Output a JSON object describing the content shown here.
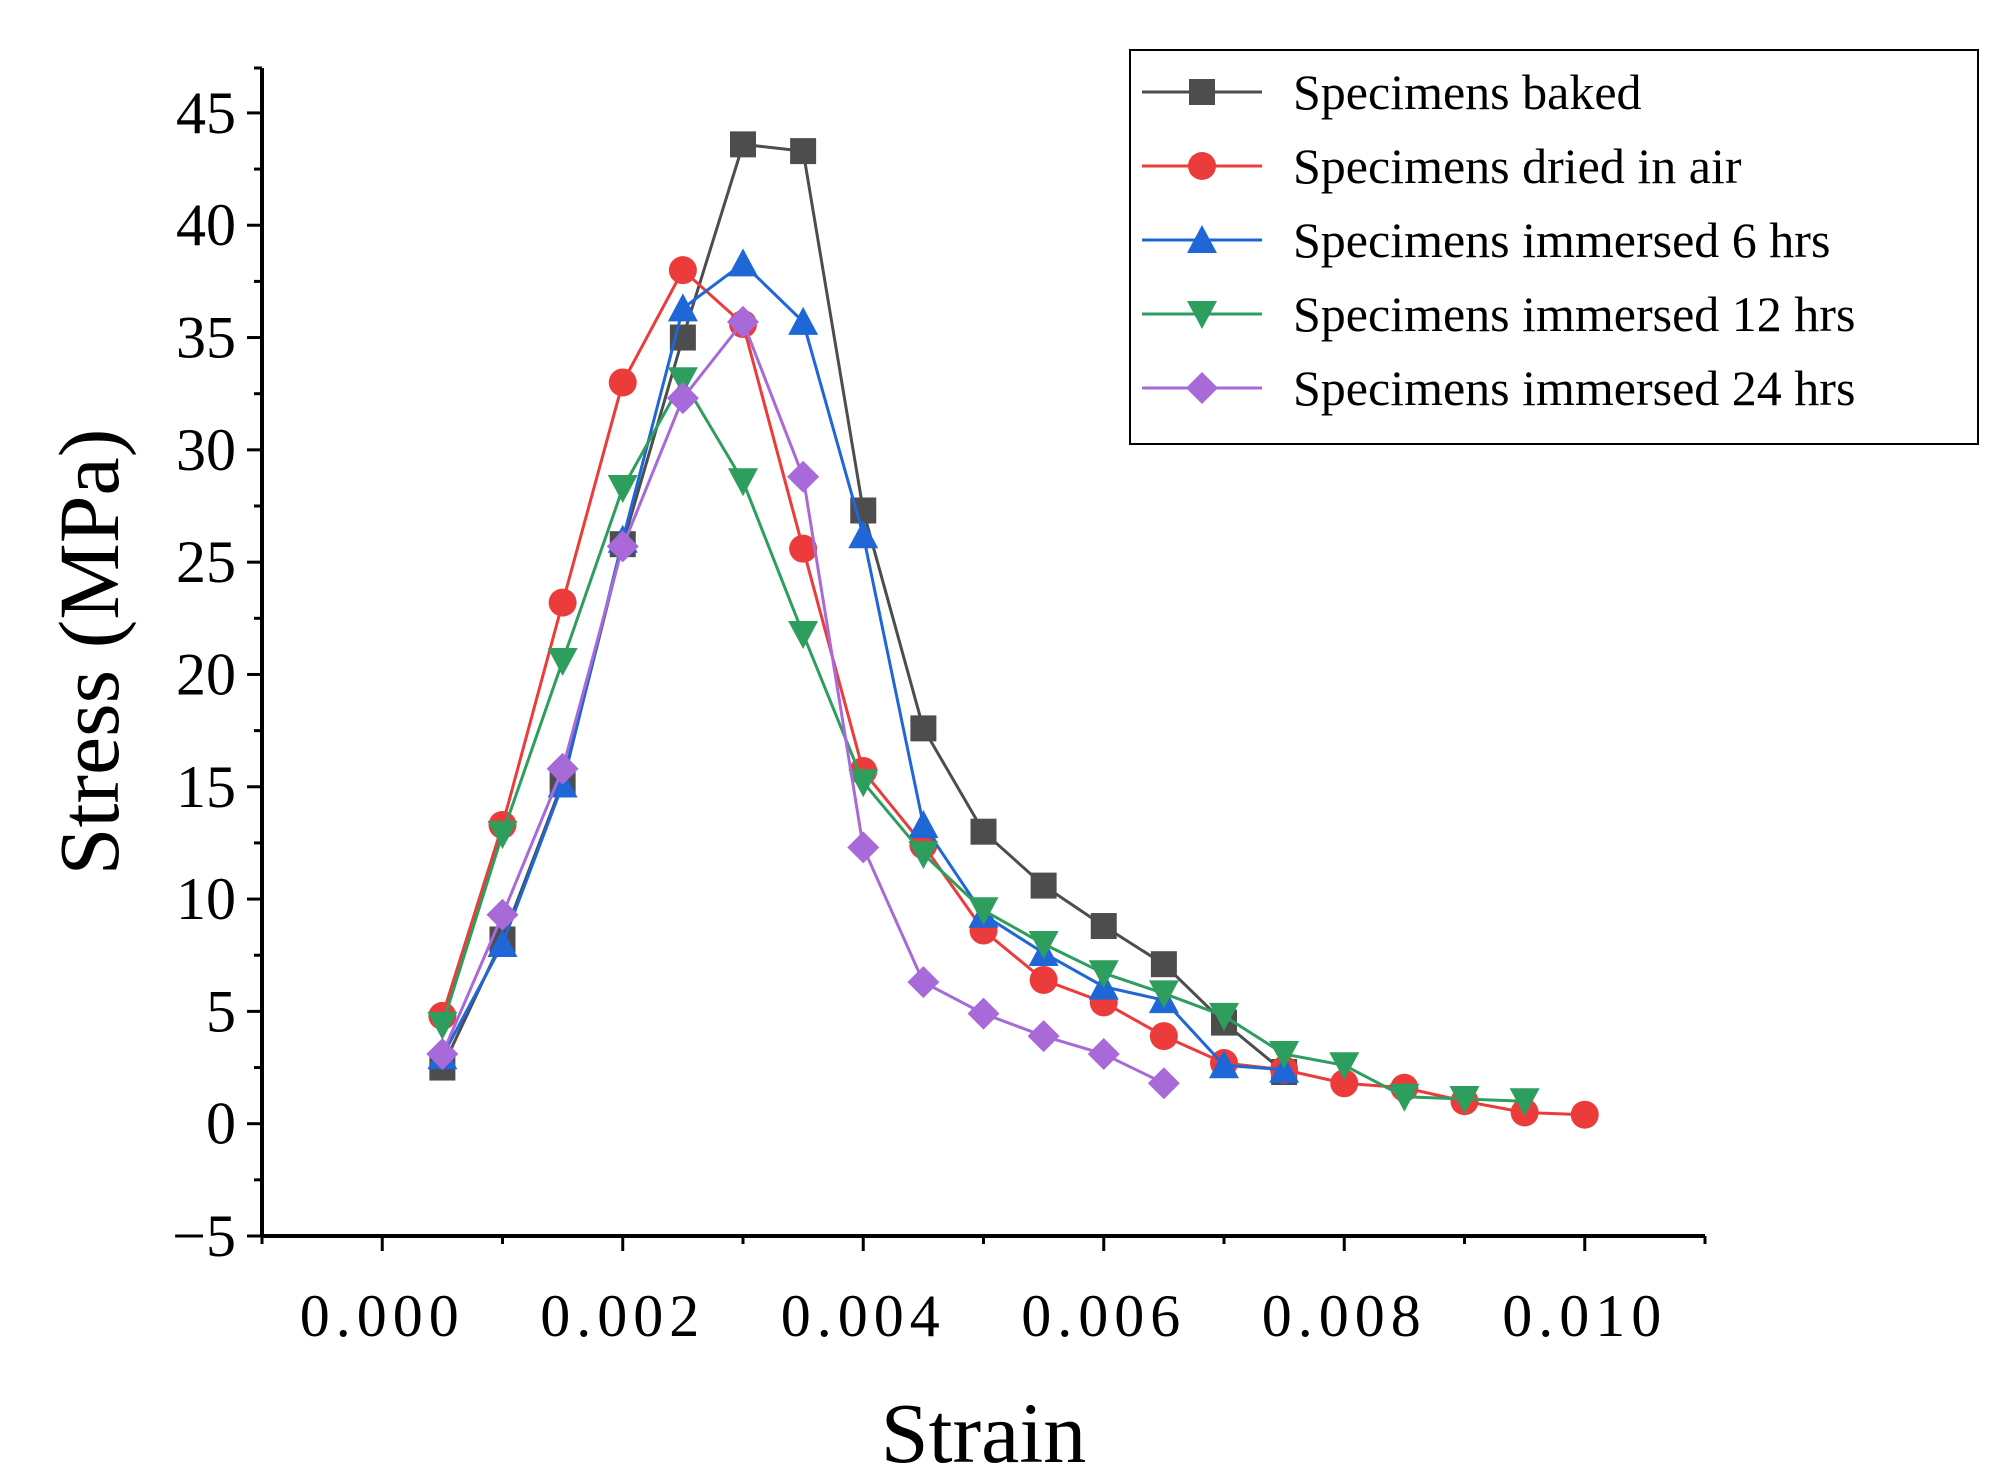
{
  "chart_data": {
    "type": "line",
    "title": "",
    "xlabel": "Strain",
    "ylabel": "Stress (MPa)",
    "xlim": [
      -0.001,
      0.011
    ],
    "ylim": [
      -5,
      47
    ],
    "x_ticks": [
      0.0,
      0.002,
      0.004,
      0.006,
      0.008,
      0.01
    ],
    "x_tick_labels": [
      "0.000",
      "0.002",
      "0.004",
      "0.006",
      "0.008",
      "0.010"
    ],
    "y_ticks": [
      -5,
      0,
      5,
      10,
      15,
      20,
      25,
      30,
      35,
      40,
      45
    ],
    "y_tick_labels": [
      "−5",
      "0",
      "5",
      "10",
      "15",
      "20",
      "25",
      "30",
      "35",
      "40",
      "45"
    ],
    "grid": false,
    "legend_position": "top-right",
    "series": [
      {
        "name": "Specimens baked",
        "color": "#4d4d4d",
        "marker": "square",
        "x": [
          0.0005,
          0.001,
          0.0015,
          0.002,
          0.0025,
          0.003,
          0.0035,
          0.004,
          0.0045,
          0.005,
          0.0055,
          0.006,
          0.0065,
          0.007,
          0.0075
        ],
        "y": [
          2.5,
          8.2,
          15.2,
          25.8,
          35.0,
          43.6,
          43.3,
          27.3,
          17.6,
          13.0,
          10.6,
          8.8,
          7.1,
          4.5,
          2.3
        ]
      },
      {
        "name": "Specimens dried in air",
        "color": "#ec3b3b",
        "marker": "circle",
        "x": [
          0.0005,
          0.001,
          0.0015,
          0.002,
          0.0025,
          0.003,
          0.0035,
          0.004,
          0.0045,
          0.005,
          0.0055,
          0.006,
          0.0065,
          0.007,
          0.0075,
          0.008,
          0.0085,
          0.009,
          0.0095,
          0.01
        ],
        "y": [
          4.8,
          13.3,
          23.2,
          33.0,
          38.0,
          35.6,
          25.6,
          15.7,
          12.4,
          8.6,
          6.4,
          5.4,
          3.9,
          2.7,
          2.4,
          1.8,
          1.6,
          1.0,
          0.5,
          0.4
        ]
      },
      {
        "name": "Specimens immersed 6 hrs",
        "color": "#1f66d6",
        "marker": "triangle-up",
        "x": [
          0.0005,
          0.001,
          0.0015,
          0.002,
          0.0025,
          0.003,
          0.0035,
          0.004,
          0.0045,
          0.005,
          0.0055,
          0.006,
          0.0065,
          0.007,
          0.0075
        ],
        "y": [
          3.0,
          8.0,
          15.1,
          26.0,
          36.3,
          38.3,
          35.7,
          26.2,
          13.3,
          9.3,
          7.6,
          6.1,
          5.5,
          2.6,
          2.4
        ]
      },
      {
        "name": "Specimens immersed 12 hrs",
        "color": "#2e9e5e",
        "marker": "triangle-down",
        "x": [
          0.0005,
          0.001,
          0.0015,
          0.002,
          0.0025,
          0.003,
          0.0035,
          0.004,
          0.0045,
          0.005,
          0.0055,
          0.006,
          0.0065,
          0.007,
          0.0075,
          0.008,
          0.0085,
          0.009,
          0.0095
        ],
        "y": [
          4.4,
          12.9,
          20.6,
          28.3,
          33.1,
          28.6,
          21.8,
          15.2,
          12.0,
          9.5,
          8.0,
          6.7,
          5.8,
          4.8,
          3.1,
          2.6,
          1.2,
          1.1,
          1.0
        ]
      },
      {
        "name": "Specimens immersed 24 hrs",
        "color": "#a86ad8",
        "marker": "diamond",
        "x": [
          0.0005,
          0.001,
          0.0015,
          0.002,
          0.0025,
          0.003,
          0.0035,
          0.004,
          0.0045,
          0.005,
          0.0055,
          0.006,
          0.0065
        ],
        "y": [
          3.1,
          9.3,
          15.8,
          25.7,
          32.3,
          35.7,
          28.8,
          12.3,
          6.3,
          4.9,
          3.9,
          3.1,
          1.8
        ]
      }
    ]
  }
}
